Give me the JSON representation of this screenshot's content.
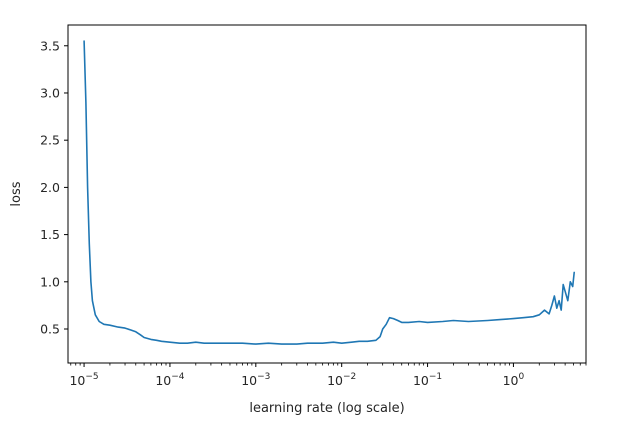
{
  "chart_data": {
    "type": "line",
    "title": "",
    "xlabel": "learning rate (log scale)",
    "ylabel": "loss",
    "x_scale": "log",
    "xlim": [
      6.5e-06,
      7
    ],
    "ylim": [
      0.14,
      3.72
    ],
    "grid": false,
    "x_ticks": [
      {
        "value": 1e-05,
        "base": "10",
        "exp": "−5"
      },
      {
        "value": 0.0001,
        "base": "10",
        "exp": "−4"
      },
      {
        "value": 0.001,
        "base": "10",
        "exp": "−3"
      },
      {
        "value": 0.01,
        "base": "10",
        "exp": "−2"
      },
      {
        "value": 0.1,
        "base": "10",
        "exp": "−1"
      },
      {
        "value": 1,
        "base": "10",
        "exp": "0"
      }
    ],
    "y_ticks": [
      "0.5",
      "1.0",
      "1.5",
      "2.0",
      "2.5",
      "3.0",
      "3.5"
    ],
    "series": [
      {
        "color": "#1f77b4",
        "x": [
          1e-05,
          1.05e-05,
          1.1e-05,
          1.15e-05,
          1.2e-05,
          1.25e-05,
          1.35e-05,
          1.5e-05,
          1.7e-05,
          2e-05,
          2.5e-05,
          3e-05,
          3.5e-05,
          4e-05,
          4.5e-05,
          5e-05,
          6e-05,
          7e-05,
          8e-05,
          0.0001,
          0.00013,
          0.00016,
          0.0002,
          0.00025,
          0.0003,
          0.0004,
          0.0005,
          0.0007,
          0.001,
          0.0014,
          0.002,
          0.003,
          0.004,
          0.006,
          0.008,
          0.01,
          0.013,
          0.016,
          0.02,
          0.025,
          0.028,
          0.03,
          0.033,
          0.036,
          0.04,
          0.045,
          0.05,
          0.06,
          0.08,
          0.1,
          0.15,
          0.2,
          0.3,
          0.5,
          0.7,
          1.0,
          1.3,
          1.7,
          2.0,
          2.3,
          2.6,
          2.8,
          3.0,
          3.2,
          3.4,
          3.6,
          3.8,
          4.0,
          4.3,
          4.6,
          4.9,
          5.1
        ],
        "y": [
          3.55,
          2.9,
          2.0,
          1.4,
          1.0,
          0.8,
          0.65,
          0.58,
          0.55,
          0.54,
          0.52,
          0.51,
          0.49,
          0.47,
          0.44,
          0.41,
          0.39,
          0.38,
          0.37,
          0.36,
          0.35,
          0.35,
          0.36,
          0.35,
          0.35,
          0.35,
          0.35,
          0.35,
          0.34,
          0.35,
          0.34,
          0.34,
          0.35,
          0.35,
          0.36,
          0.35,
          0.36,
          0.37,
          0.37,
          0.38,
          0.42,
          0.5,
          0.55,
          0.62,
          0.61,
          0.59,
          0.57,
          0.57,
          0.58,
          0.57,
          0.58,
          0.59,
          0.58,
          0.59,
          0.6,
          0.61,
          0.62,
          0.63,
          0.65,
          0.7,
          0.66,
          0.75,
          0.85,
          0.72,
          0.8,
          0.7,
          0.97,
          0.9,
          0.8,
          1.0,
          0.95,
          1.1
        ]
      }
    ]
  }
}
